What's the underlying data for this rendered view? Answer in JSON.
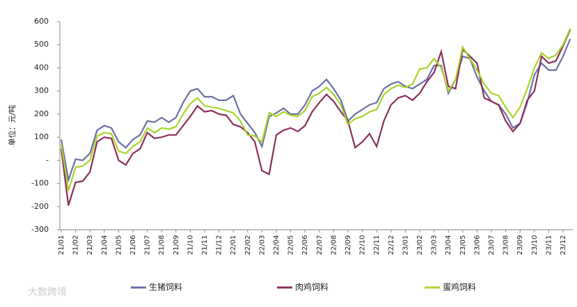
{
  "chart_data": {
    "type": "line",
    "ylabel": "单位：元/吨",
    "watermark": "大数跨境",
    "categories": [
      "21/01",
      null,
      "21/02",
      null,
      "21/03",
      null,
      "21/04",
      null,
      "21/05",
      null,
      "21/06",
      null,
      "21/07",
      null,
      "21/08",
      null,
      "21/09",
      null,
      "21/10",
      null,
      "21/11",
      null,
      "21/12",
      null,
      "22/01",
      null,
      "22/02",
      null,
      "22/03",
      null,
      "22/04",
      null,
      "22/05",
      null,
      "22/06",
      null,
      "22/07",
      null,
      "22/08",
      null,
      "22/09",
      null,
      "22/10",
      null,
      "22/11",
      null,
      "22/12",
      null,
      "23/01",
      null,
      "23/02",
      null,
      "23/03",
      null,
      "23/04",
      null,
      "23/05",
      null,
      "23/06",
      null,
      "23/07",
      null,
      "23/08",
      null,
      "23/09",
      null,
      "23/10",
      null,
      "23/11",
      null,
      "23/12",
      null
    ],
    "series": [
      {
        "name": "生猪饲料",
        "color": "#6b6fa3",
        "values": [
          90,
          -85,
          5,
          0,
          30,
          130,
          150,
          140,
          80,
          55,
          90,
          110,
          170,
          165,
          185,
          165,
          185,
          250,
          300,
          310,
          275,
          275,
          260,
          260,
          280,
          200,
          160,
          120,
          60,
          190,
          205,
          225,
          200,
          200,
          240,
          300,
          320,
          350,
          310,
          260,
          170,
          200,
          220,
          240,
          250,
          310,
          330,
          340,
          320,
          310,
          330,
          350,
          410,
          410,
          290,
          350,
          450,
          440,
          360,
          300,
          255,
          240,
          200,
          140,
          160,
          250,
          370,
          420,
          390,
          390,
          450,
          525
        ]
      },
      {
        "name": "肉鸡饲料",
        "color": "#8b2d5b",
        "values": [
          50,
          -195,
          -95,
          -90,
          -50,
          80,
          100,
          95,
          0,
          -20,
          30,
          50,
          120,
          95,
          100,
          110,
          110,
          150,
          190,
          235,
          210,
          215,
          200,
          195,
          155,
          145,
          120,
          80,
          -45,
          -60,
          110,
          130,
          140,
          125,
          150,
          210,
          250,
          285,
          255,
          210,
          170,
          55,
          80,
          115,
          60,
          170,
          240,
          270,
          280,
          260,
          290,
          340,
          380,
          470,
          320,
          310,
          480,
          450,
          420,
          270,
          255,
          240,
          170,
          125,
          160,
          260,
          300,
          450,
          420,
          430,
          495,
          565
        ]
      },
      {
        "name": "蛋鸡饲料",
        "color": "#a8d42a",
        "values": [
          70,
          -130,
          -30,
          -25,
          0,
          105,
          120,
          115,
          40,
          30,
          60,
          80,
          140,
          120,
          140,
          135,
          145,
          200,
          245,
          270,
          235,
          230,
          225,
          215,
          205,
          170,
          110,
          105,
          80,
          205,
          190,
          210,
          195,
          190,
          215,
          275,
          290,
          315,
          285,
          240,
          155,
          180,
          190,
          210,
          220,
          285,
          310,
          325,
          315,
          330,
          395,
          400,
          440,
          400,
          300,
          350,
          490,
          440,
          390,
          330,
          290,
          280,
          230,
          185,
          230,
          310,
          400,
          465,
          440,
          455,
          500,
          570
        ]
      }
    ],
    "ylim": [
      -300,
      600
    ],
    "yticks": [
      -300,
      -200,
      -100,
      {
        "value": 0,
        "label": "-"
      },
      100,
      200,
      300,
      400,
      500,
      600
    ]
  }
}
